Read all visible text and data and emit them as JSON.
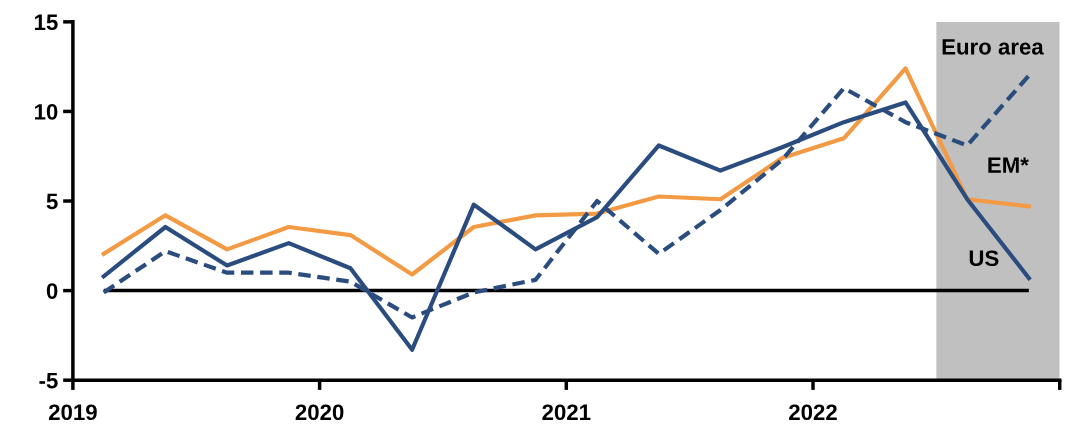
{
  "chart_data": {
    "type": "line",
    "x": [
      2019.125,
      2019.375,
      2019.625,
      2019.875,
      2020.125,
      2020.375,
      2020.625,
      2020.875,
      2021.125,
      2021.375,
      2021.625,
      2021.875,
      2022.125,
      2022.375,
      2022.625,
      2022.875
    ],
    "series": [
      {
        "name": "Euro area",
        "color": "#2b4c7e",
        "line_style": "dashed",
        "values": [
          -0.1,
          2.2,
          1.0,
          1.0,
          0.5,
          -1.5,
          -0.1,
          0.6,
          5.0,
          2.05,
          4.5,
          7.3,
          11.3,
          9.4,
          8.1,
          12.0
        ]
      },
      {
        "name": "EM*",
        "color": "#f39a45",
        "line_style": "solid",
        "values": [
          2.05,
          4.2,
          2.3,
          3.55,
          3.1,
          0.9,
          3.55,
          4.2,
          4.3,
          5.25,
          5.1,
          7.4,
          8.5,
          12.4,
          5.1,
          4.7
        ]
      },
      {
        "name": "US",
        "color": "#2b4c7e",
        "line_style": "solid",
        "values": [
          0.8,
          3.55,
          1.4,
          2.65,
          1.25,
          -3.3,
          4.8,
          2.3,
          4.1,
          8.1,
          6.7,
          8.0,
          9.4,
          10.5,
          5.1,
          0.7
        ]
      }
    ],
    "xlim": [
      2019,
      2023
    ],
    "xticks": [
      {
        "value": 2019,
        "label": "2019"
      },
      {
        "value": 2020,
        "label": "2020"
      },
      {
        "value": 2021,
        "label": "2021"
      },
      {
        "value": 2022,
        "label": "2022"
      },
      {
        "value": 2023,
        "label": null
      }
    ],
    "ylim": [
      -5,
      15
    ],
    "yticks": [
      -5,
      0,
      5,
      10,
      15
    ],
    "ref_lines": [
      {
        "axis": "y",
        "value": 0,
        "color": "#000000"
      }
    ],
    "bands": [
      {
        "axis": "x",
        "from": 2022.5,
        "to": 2023,
        "color": "#c0c0c0"
      }
    ],
    "grid": false,
    "legend": false,
    "marker": "none"
  }
}
